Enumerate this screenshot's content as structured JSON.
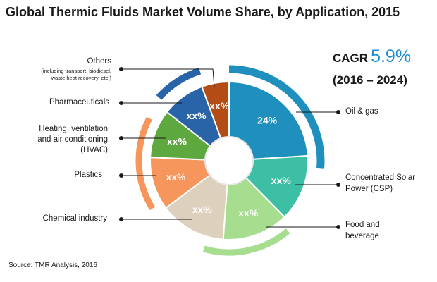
{
  "header": {
    "title": "Global Thermic Fluids Market Volume Share, by Application, 2015"
  },
  "cagr": {
    "label": "CAGR",
    "value": "5.9%",
    "period": "(2016 – 2024)"
  },
  "source": "Source:  TMR Analysis, 2016",
  "others_note": {
    "line1": "(including transport, biodiesel,",
    "line2": "waste heat recovery, etc.)"
  },
  "colors": {
    "accent": "#1f8fd0"
  },
  "chart_data": {
    "type": "pie",
    "title": "Global Thermic Fluids Market Volume Share, by Application, 2015",
    "legend": "callout labels",
    "slices": [
      {
        "name": "Oil & gas",
        "label": "24%",
        "value": 24,
        "color": "#1f8fbe"
      },
      {
        "name": "Concentrated Solar Power (CSP)",
        "label": "xx%",
        "value": 13.6,
        "color": "#3dbfa6"
      },
      {
        "name": "Food and beverage",
        "label": "xx%",
        "value": 13.6,
        "color": "#a6dd8e"
      },
      {
        "name": "Chemical industry",
        "label": "xx%",
        "value": 13.6,
        "color": "#ddd0bd"
      },
      {
        "name": "Plastics",
        "label": "xx%",
        "value": 10.9,
        "color": "#f6955c"
      },
      {
        "name": "Heating, ventilation and air conditioning (HVAC)",
        "label": "xx%",
        "value": 9.9,
        "color": "#5ea840"
      },
      {
        "name": "Pharmaceuticals",
        "label": "xx%",
        "value": 8.8,
        "color": "#2a64a8"
      },
      {
        "name": "Others",
        "label": "xx%",
        "value": 5.6,
        "color": "#b44d15"
      }
    ],
    "callouts": {
      "oil_gas": "Oil & gas",
      "csp_line1": "Concentrated Solar",
      "csp_line2": "Power (CSP)",
      "food_line1": "Food and",
      "food_line2": "beverage",
      "chemical": "Chemical industry",
      "plastics": "Plastics",
      "hvac_line1": "Heating, ventilation",
      "hvac_line2": "and  air conditioning",
      "hvac_line3": "(HVAC)",
      "pharma": "Pharmaceuticals",
      "others": "Others"
    }
  }
}
